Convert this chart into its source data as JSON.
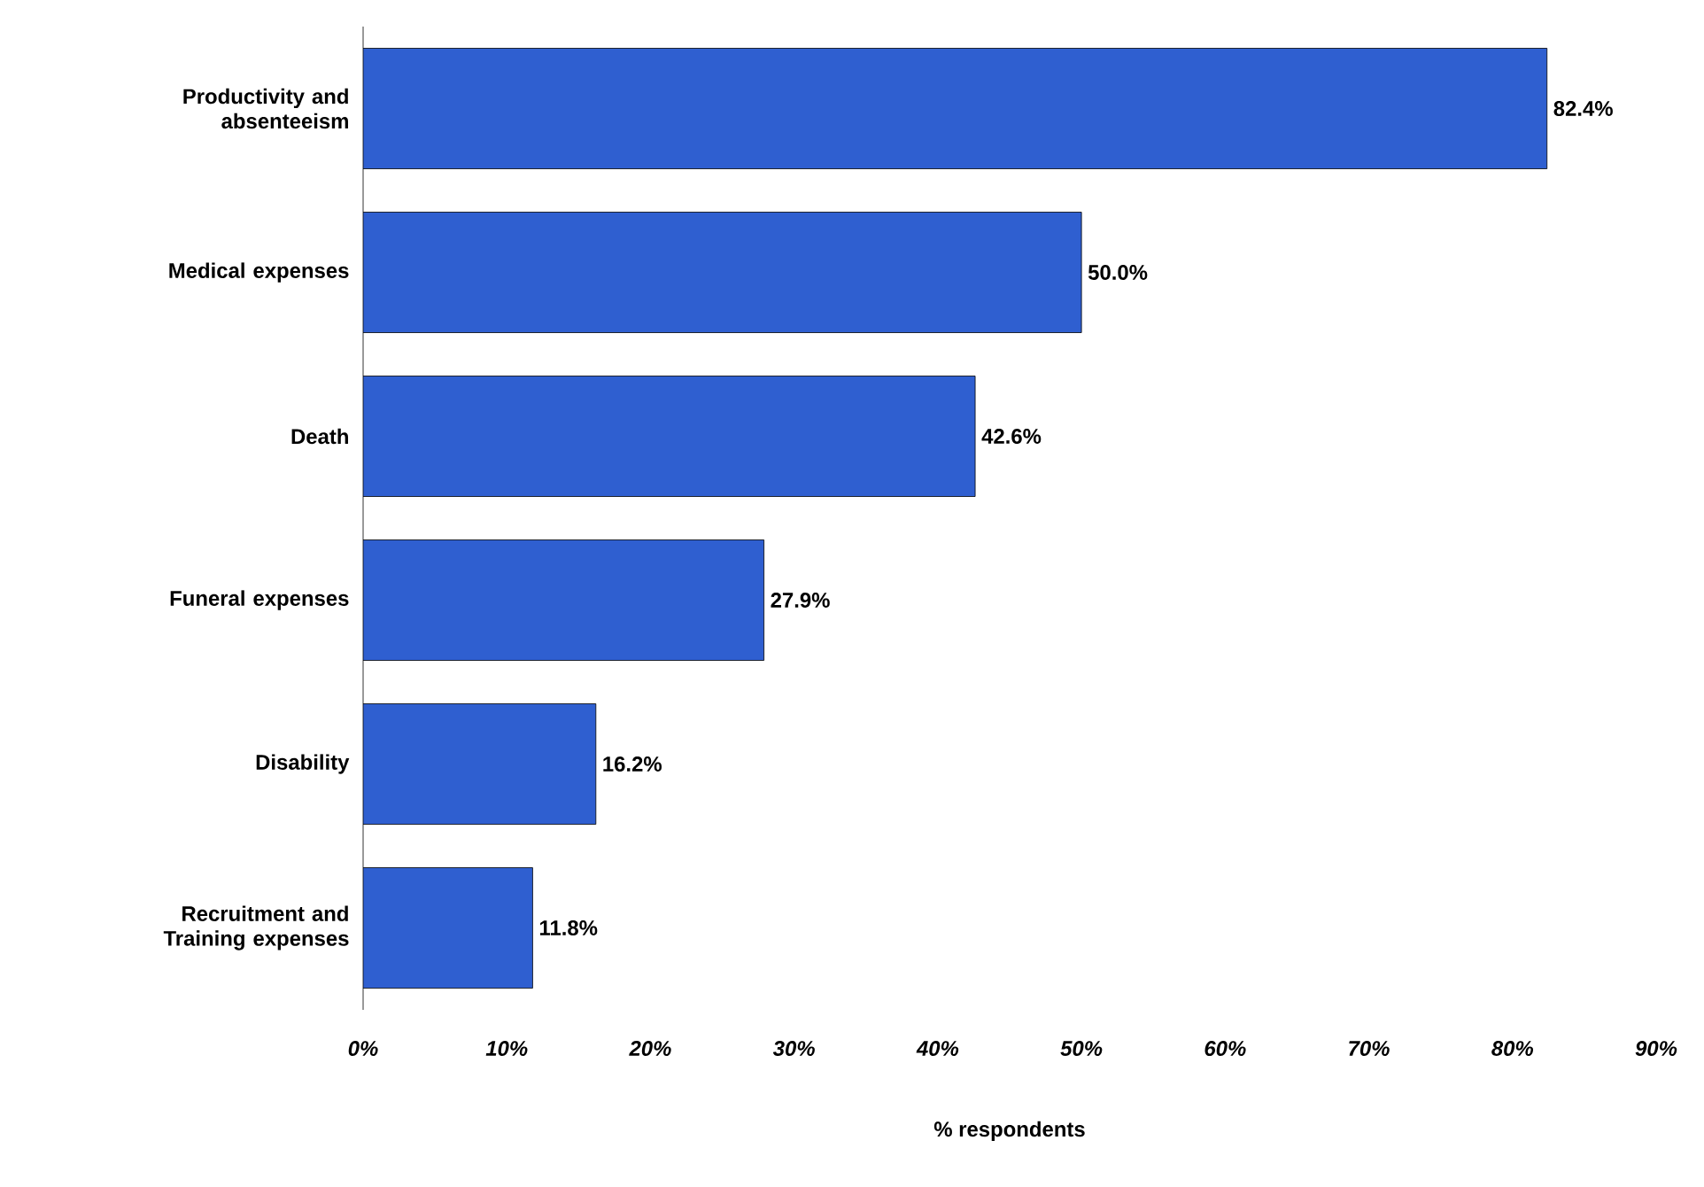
{
  "chart_data": {
    "type": "bar",
    "orientation": "horizontal",
    "categories": [
      "Productivity and absenteeism",
      "Medical expenses",
      "Death",
      "Funeral expenses",
      "Disability",
      "Recruitment and Training expenses"
    ],
    "values": [
      82.4,
      50.0,
      42.6,
      27.9,
      16.2,
      11.8
    ],
    "value_labels": [
      "82.4%",
      "50.0%",
      "42.6%",
      "27.9%",
      "16.2%",
      "11.8%"
    ],
    "color": "#2f5fd0",
    "xlim": [
      0,
      90
    ],
    "xticks": [
      {
        "value": 0,
        "label": "0%"
      },
      {
        "value": 10,
        "label": "10%"
      },
      {
        "value": 20,
        "label": "20%"
      },
      {
        "value": 30,
        "label": "30%"
      },
      {
        "value": 40,
        "label": "40%"
      },
      {
        "value": 50,
        "label": "50%"
      },
      {
        "value": 60,
        "label": "60%"
      },
      {
        "value": 70,
        "label": "70%"
      },
      {
        "value": 80,
        "label": "80%"
      },
      {
        "value": 90,
        "label": "90%"
      }
    ],
    "xlabel": "% respondents",
    "grid": false
  }
}
